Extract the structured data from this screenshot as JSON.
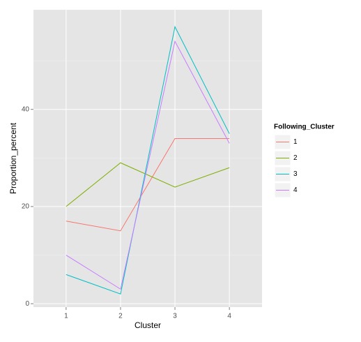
{
  "chart_data": {
    "type": "line",
    "x_label": "Cluster",
    "y_label": "Proportion_percent",
    "x": [
      1,
      2,
      3,
      4
    ],
    "xlim": [
      0.4,
      4.6
    ],
    "xticks": [
      1,
      2,
      3,
      4
    ],
    "ylim": [
      -0.7,
      60.5
    ],
    "yticks": [
      0,
      20,
      40
    ],
    "yminor": [
      10,
      30,
      50
    ],
    "grid": true,
    "legend_title": "Following_Cluster",
    "legend_position": "right",
    "series": [
      {
        "name": "1",
        "color": "#F8766D",
        "values": [
          17,
          15,
          34,
          34
        ]
      },
      {
        "name": "2",
        "color": "#7CAE00",
        "values": [
          20,
          29,
          24,
          28
        ]
      },
      {
        "name": "3",
        "color": "#00BFC4",
        "values": [
          6,
          2,
          57,
          35
        ]
      },
      {
        "name": "4",
        "color": "#C77CFF",
        "values": [
          10,
          3,
          54,
          33
        ]
      }
    ]
  }
}
